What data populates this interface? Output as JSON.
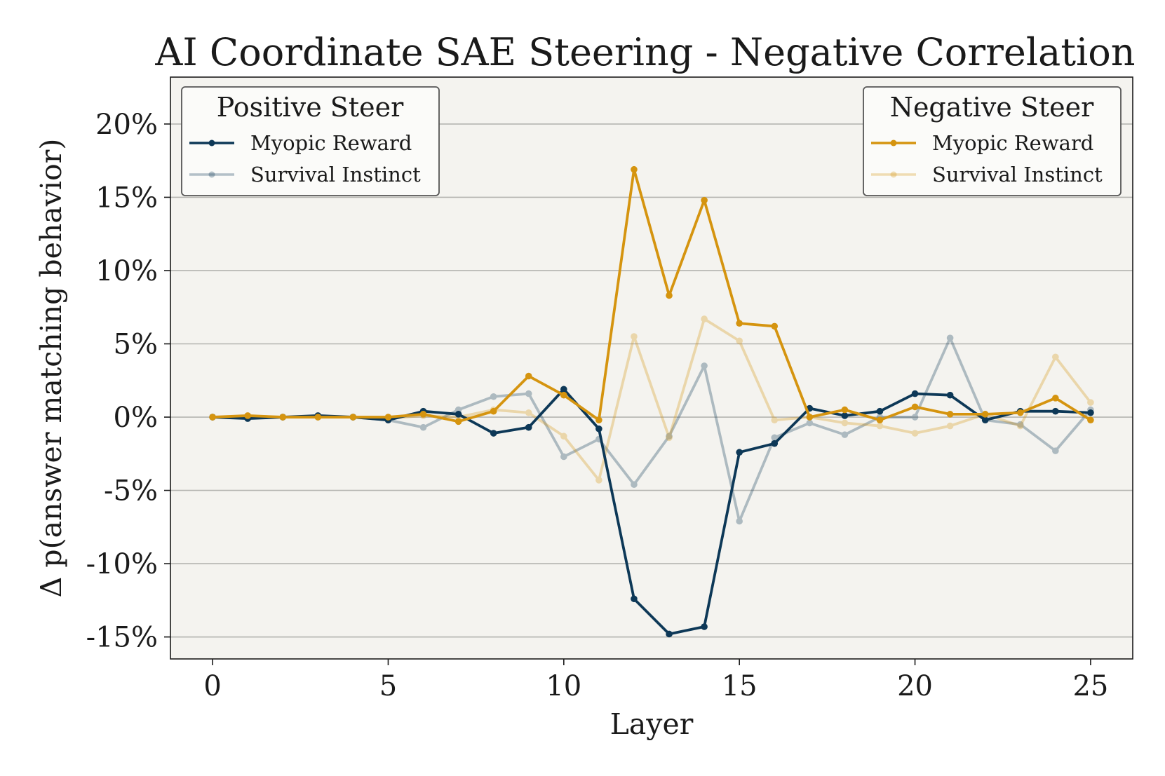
{
  "chart_data": {
    "type": "line",
    "title": "AI Coordinate SAE Steering - Negative Correlation",
    "xlabel": "Layer",
    "ylabel": "Δ p(answer matching behavior)",
    "xlim": [
      -1.2,
      26.2
    ],
    "ylim": [
      -16.5,
      23.2
    ],
    "x_ticks": [
      0,
      5,
      10,
      15,
      20,
      25
    ],
    "y_ticks": [
      20,
      15,
      10,
      5,
      0,
      -5,
      -10,
      -15
    ],
    "y_tick_labels": [
      "20%",
      "15%",
      "10%",
      "5%",
      "0%",
      "-5%",
      "-10%",
      "-15%"
    ],
    "grid": "horizontal",
    "colors": {
      "positive": "#0d3857",
      "negative": "#d5940f",
      "plot_background": "#f4f3ef"
    },
    "x": [
      0,
      1,
      2,
      3,
      4,
      5,
      6,
      7,
      8,
      9,
      10,
      11,
      12,
      13,
      14,
      15,
      16,
      17,
      18,
      19,
      20,
      21,
      22,
      23,
      24,
      25
    ],
    "series": [
      {
        "name": "Myopic Reward",
        "group": "Positive Steer",
        "color": "#0d3857",
        "alpha": 1.0,
        "values": [
          0,
          -0.1,
          0,
          0.1,
          0,
          -0.2,
          0.4,
          0.2,
          -1.1,
          -0.7,
          1.9,
          -0.8,
          -12.4,
          -14.8,
          -14.3,
          -2.4,
          -1.8,
          0.6,
          0.1,
          0.4,
          1.6,
          1.5,
          -0.2,
          0.4,
          0.4,
          0.3
        ]
      },
      {
        "name": "Survival Instinct",
        "group": "Positive Steer",
        "color": "#0d3857",
        "alpha": 0.3,
        "values": [
          0,
          0,
          0,
          0,
          0,
          -0.2,
          -0.7,
          0.5,
          1.4,
          1.6,
          -2.7,
          -1.5,
          -4.6,
          -1.3,
          3.5,
          -7.1,
          -1.4,
          -0.4,
          -1.2,
          0,
          0,
          5.4,
          -0.2,
          -0.5,
          -2.3,
          0.5
        ]
      },
      {
        "name": "Myopic Reward",
        "group": "Negative Steer",
        "color": "#d5940f",
        "alpha": 1.0,
        "values": [
          0,
          0.1,
          0,
          0,
          0,
          0,
          0.2,
          -0.3,
          0.4,
          2.8,
          1.5,
          -0.2,
          16.9,
          8.3,
          14.8,
          6.4,
          6.2,
          0,
          0.5,
          -0.2,
          0.7,
          0.2,
          0.2,
          0.3,
          1.3,
          -0.2
        ]
      },
      {
        "name": "Survival Instinct",
        "group": "Negative Steer",
        "color": "#d5940f",
        "alpha": 0.3,
        "values": [
          0,
          0,
          0,
          0,
          0,
          -0.1,
          0.1,
          0,
          0.5,
          0.3,
          -1.3,
          -4.3,
          5.5,
          -1.4,
          6.7,
          5.2,
          -0.2,
          0,
          -0.4,
          -0.6,
          -1.1,
          -0.6,
          0.2,
          -0.6,
          4.1,
          1
        ]
      }
    ],
    "legends": [
      {
        "title": "Positive Steer",
        "placement": "top-left",
        "entries": [
          "Myopic Reward",
          "Survival Instinct"
        ]
      },
      {
        "title": "Negative Steer",
        "placement": "top-right",
        "entries": [
          "Myopic Reward",
          "Survival Instinct"
        ]
      }
    ]
  }
}
